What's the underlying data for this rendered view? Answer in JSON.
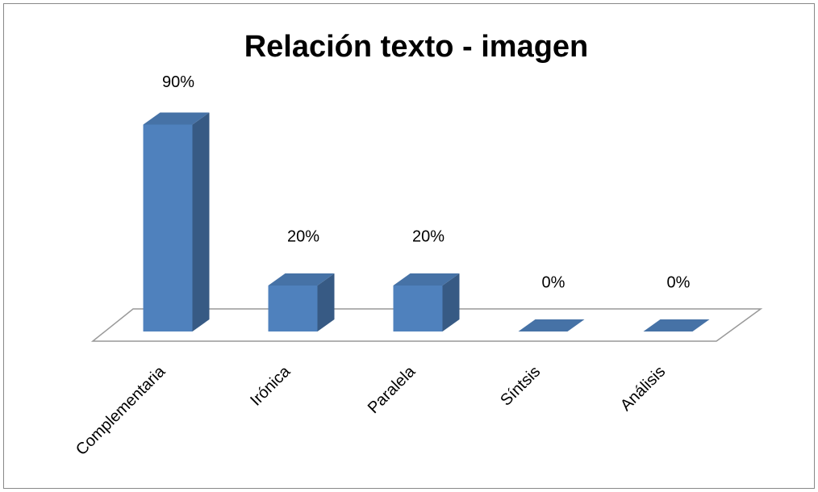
{
  "chart_data": {
    "type": "bar",
    "title": "Relación texto - imagen",
    "categories": [
      "Complementaria",
      "Irónica",
      "Paralela",
      "Síntsis",
      "Análisis"
    ],
    "values": [
      90,
      20,
      20,
      0,
      0
    ],
    "value_labels": [
      "90%",
      "20%",
      "20%",
      "0%",
      "0%"
    ],
    "color": "#4f81bd"
  }
}
